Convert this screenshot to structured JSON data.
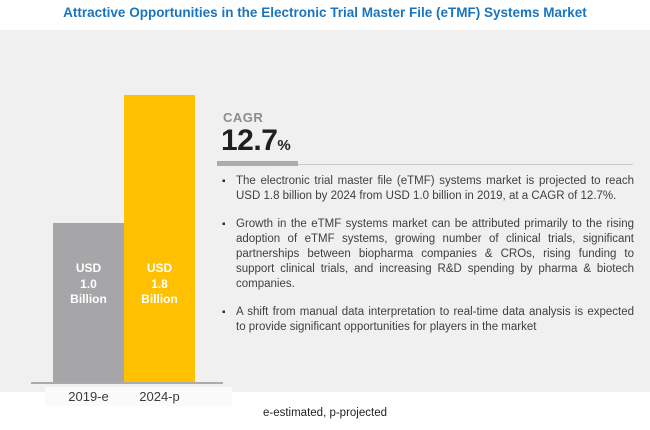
{
  "title": "Attractive Opportunities in the Electronic Trial Master File (eTMF) Systems Market",
  "chart_data": {
    "type": "bar",
    "categories": [
      "2019-e",
      "2024-p"
    ],
    "series": [
      {
        "name": "eTMF systems market size (USD Billion)",
        "values": [
          1.0,
          1.8
        ]
      }
    ],
    "unit": "USD Billion",
    "ylim": [
      0,
      2
    ],
    "grid": false,
    "legend_position": "none",
    "bars": [
      {
        "category": "2019-e",
        "value": 1.0,
        "color": "#A6A6A8",
        "value_label_lines": [
          "USD",
          "1.0",
          "Billion"
        ]
      },
      {
        "category": "2024-p",
        "value": 1.8,
        "color": "#FFC000",
        "value_label_lines": [
          "USD",
          "1.8",
          "Billion"
        ]
      }
    ]
  },
  "cagr": {
    "label": "CAGR",
    "value": "12.7",
    "unit": "%"
  },
  "bullet_marker": "▪",
  "bullets": [
    "The electronic trial master file (eTMF) systems market is projected to reach USD 1.8 billion by 2024 from USD 1.0 billion in 2019, at a CAGR of 12.7%.",
    "Growth in the eTMF systems market can be attributed primarily to the rising adoption of eTMF systems, growing number of clinical trials, significant partnerships between biopharma companies & CROs, rising funding to support clinical trials, and increasing R&D spending by pharma & biotech companies.",
    "A shift from manual data interpretation to real-time data analysis is expected to provide significant opportunities for players in the market"
  ],
  "footnote": "e-estimated, p-projected",
  "colors": {
    "title_blue": "#1B75BC",
    "bar_gray": "#A6A6A8",
    "bar_yellow": "#FFC000",
    "panel_background": "#F0F0F1",
    "body_text": "#404040",
    "cagr_label_gray": "#8A8C8E",
    "cagr_value_dark": "#1F1F1F"
  }
}
